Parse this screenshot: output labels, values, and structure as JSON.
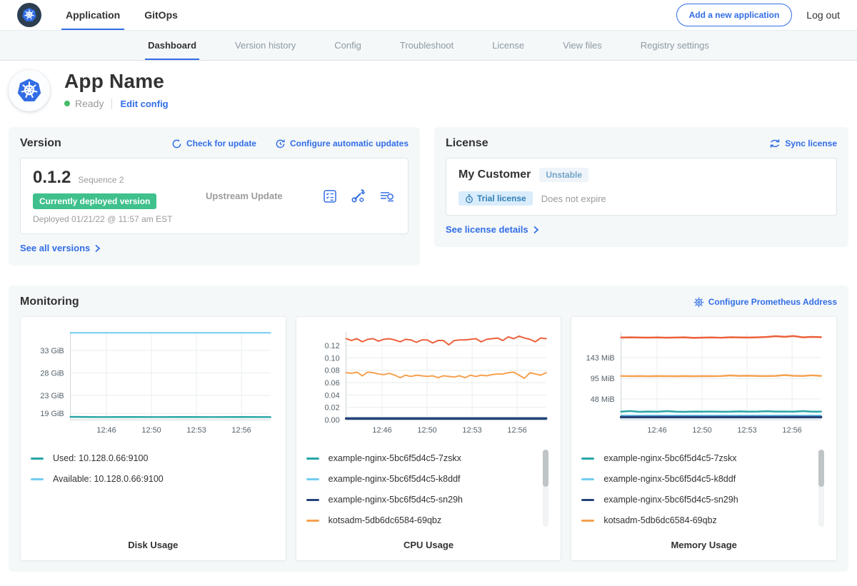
{
  "topnav": {
    "tabs": [
      {
        "label": "Application",
        "active": true
      },
      {
        "label": "GitOps",
        "active": false
      }
    ],
    "add_app_button": "Add a new application",
    "logout": "Log out"
  },
  "subnav": {
    "tabs": [
      "Dashboard",
      "Version history",
      "Config",
      "Troubleshoot",
      "License",
      "View files",
      "Registry settings"
    ],
    "active": "Dashboard"
  },
  "app_header": {
    "name": "App Name",
    "status": "Ready",
    "edit_config": "Edit config"
  },
  "version_card": {
    "title": "Version",
    "check_for_update": "Check for update",
    "configure_automatic_updates": "Configure automatic updates",
    "version": "0.1.2",
    "sequence": "Sequence 2",
    "deployed_badge": "Currently deployed version",
    "deployed_at": "Deployed 01/21/22 @ 11:57 am EST",
    "source": "Upstream Update",
    "icons": [
      "release-notes-icon",
      "preflight-checks-icon",
      "deploy-logs-icon"
    ],
    "see_all_versions": "See all versions"
  },
  "license_card": {
    "title": "License",
    "sync_license": "Sync license",
    "customer": "My Customer",
    "channel_badge": "Unstable",
    "type_badge": "Trial license",
    "expiry": "Does not expire",
    "see_license_details": "See license details"
  },
  "monitoring": {
    "title": "Monitoring",
    "configure_link": "Configure Prometheus Address"
  },
  "colors": {
    "accent_blue": "#326de6",
    "ready_green": "#44bb66",
    "deployed_badge_green": "#3fc08c",
    "trial_badge_blue": "#3280b6",
    "series_teal": "#29a5a5",
    "series_light_blue": "#73ccf0",
    "series_navy": "#25437a",
    "series_orange": "#f5a14f",
    "series_red_orange": "#ec603b"
  },
  "chart_data": [
    {
      "type": "line",
      "title": "Disk Usage",
      "ylim": [
        17.6,
        37.1
      ],
      "yticks": [
        {
          "v": 19,
          "label": "19 GiB"
        },
        {
          "v": 23,
          "label": "23 GiB"
        },
        {
          "v": 28,
          "label": "28 GiB"
        },
        {
          "v": 33,
          "label": "33 GiB"
        }
      ],
      "xticks": [
        {
          "pos": 0.18,
          "label": "12:46"
        },
        {
          "pos": 0.405,
          "label": "12:50"
        },
        {
          "pos": 0.63,
          "label": "12:53"
        },
        {
          "pos": 0.855,
          "label": "12:56"
        }
      ],
      "scrollbar": false,
      "series": [
        {
          "name": "Used: 10.128.0.66:9100",
          "color": "#29a5a5",
          "width": 2.5,
          "values": [
            18.25,
            18.2,
            18.22,
            18.2,
            18.21,
            18.2,
            18.22,
            18.2
          ]
        },
        {
          "name": "Available: 10.128.0.66:9100",
          "color": "#73ccf0",
          "width": 2,
          "values": [
            36.9,
            36.9,
            36.9,
            36.9,
            36.9,
            36.9,
            36.9,
            36.9
          ]
        }
      ]
    },
    {
      "type": "line",
      "title": "CPU Usage",
      "ylim": [
        0,
        0.142
      ],
      "yticks": [
        {
          "v": 0.0,
          "label": "0.00"
        },
        {
          "v": 0.02,
          "label": "0.02"
        },
        {
          "v": 0.04,
          "label": "0.04"
        },
        {
          "v": 0.06,
          "label": "0.06"
        },
        {
          "v": 0.08,
          "label": "0.08"
        },
        {
          "v": 0.1,
          "label": "0.10"
        },
        {
          "v": 0.12,
          "label": "0.12"
        }
      ],
      "xticks": [
        {
          "pos": 0.18,
          "label": "12:46"
        },
        {
          "pos": 0.405,
          "label": "12:50"
        },
        {
          "pos": 0.63,
          "label": "12:53"
        },
        {
          "pos": 0.855,
          "label": "12:56"
        }
      ],
      "scrollbar": true,
      "series": [
        {
          "name": "example-nginx-5bc6f5d4c5-7zskx",
          "color": "#29a5a5",
          "width": 2,
          "values": [
            0.003,
            0.003,
            0.003,
            0.003,
            0.003,
            0.003,
            0.003,
            0.003,
            0.003,
            0.003
          ]
        },
        {
          "name": "example-nginx-5bc6f5d4c5-k8ddf",
          "color": "#73ccf0",
          "width": 2,
          "values": [
            0.002,
            0.002,
            0.002,
            0.002,
            0.002,
            0.002,
            0.002,
            0.002,
            0.002,
            0.002
          ]
        },
        {
          "name": "example-nginx-5bc6f5d4c5-sn29h",
          "color": "#25437a",
          "width": 3.5,
          "values": [
            0.002,
            0.002,
            0.002,
            0.002,
            0.002,
            0.002,
            0.002,
            0.002,
            0.002,
            0.002
          ]
        },
        {
          "name": "kotsadm-5db6dc6584-69qbz",
          "color": "#f5a14f",
          "width": 2,
          "values": [
            0.076,
            0.075,
            0.077,
            0.071,
            0.077,
            0.076,
            0.074,
            0.073,
            0.075,
            0.072,
            0.068,
            0.072,
            0.07,
            0.072,
            0.071,
            0.07,
            0.071,
            0.068,
            0.071,
            0.07,
            0.069,
            0.071,
            0.068,
            0.072,
            0.07,
            0.072,
            0.071,
            0.073,
            0.074,
            0.074,
            0.076,
            0.077,
            0.072,
            0.067,
            0.076,
            0.074,
            0.072,
            0.076
          ]
        },
        {
          "name": "",
          "color": "#ec603b",
          "width": 2,
          "values": [
            0.131,
            0.128,
            0.131,
            0.126,
            0.13,
            0.131,
            0.127,
            0.13,
            0.131,
            0.129,
            0.126,
            0.13,
            0.129,
            0.125,
            0.129,
            0.129,
            0.124,
            0.128,
            0.128,
            0.121,
            0.128,
            0.129,
            0.129,
            0.13,
            0.131,
            0.126,
            0.13,
            0.131,
            0.132,
            0.128,
            0.134,
            0.131,
            0.135,
            0.132,
            0.13,
            0.126,
            0.132,
            0.131
          ]
        }
      ]
    },
    {
      "type": "line",
      "title": "Memory Usage",
      "ylim": [
        0,
        202
      ],
      "yticks": [
        {
          "v": 48,
          "label": "48 MiB"
        },
        {
          "v": 95,
          "label": "95 MiB"
        },
        {
          "v": 143,
          "label": "143 MiB"
        }
      ],
      "xticks": [
        {
          "pos": 0.18,
          "label": "12:46"
        },
        {
          "pos": 0.405,
          "label": "12:50"
        },
        {
          "pos": 0.63,
          "label": "12:53"
        },
        {
          "pos": 0.855,
          "label": "12:56"
        }
      ],
      "scrollbar": true,
      "series": [
        {
          "name": "example-nginx-5bc6f5d4c5-7zskx",
          "color": "#29a5a5",
          "width": 2.5,
          "values": [
            18.5,
            20.0,
            18.2,
            18.8,
            18.4,
            19.8,
            18.6,
            18.3,
            18.7,
            18.5,
            18.9,
            18.4,
            18.6,
            19.2,
            18.5,
            18.8,
            19.6,
            18.7,
            18.9,
            18.5,
            19.8,
            18.6,
            18.8
          ]
        },
        {
          "name": "example-nginx-5bc6f5d4c5-k8ddf",
          "color": "#73ccf0",
          "width": 2,
          "values": [
            10,
            10,
            10,
            10,
            10,
            10,
            10,
            10
          ]
        },
        {
          "name": "example-nginx-5bc6f5d4c5-sn29h",
          "color": "#25437a",
          "width": 3.5,
          "values": [
            6,
            6,
            6,
            6,
            6,
            6,
            6,
            6
          ]
        },
        {
          "name": "kotsadm-5db6dc6584-69qbz",
          "color": "#f5a14f",
          "width": 2.5,
          "values": [
            100.5,
            100.2,
            100.4,
            100.1,
            100.3,
            100.2,
            100.0,
            100.3,
            100.1,
            100.4,
            100.2,
            100.5,
            101.8,
            100.9,
            101.2,
            100.6,
            100.4,
            100.8,
            102.6,
            101.0,
            100.7,
            102.2,
            100.8
          ]
        },
        {
          "name": "",
          "color": "#ec603b",
          "width": 2.5,
          "values": [
            189,
            189.4,
            189,
            188.8,
            189.2,
            188.6,
            188.9,
            189.4,
            188.2,
            188.8,
            189.1,
            188.5,
            189.6,
            189.2,
            189.0,
            189.4,
            190.2,
            192.0,
            190.6,
            192.4,
            189.5,
            190.4,
            189.8
          ]
        }
      ]
    }
  ]
}
